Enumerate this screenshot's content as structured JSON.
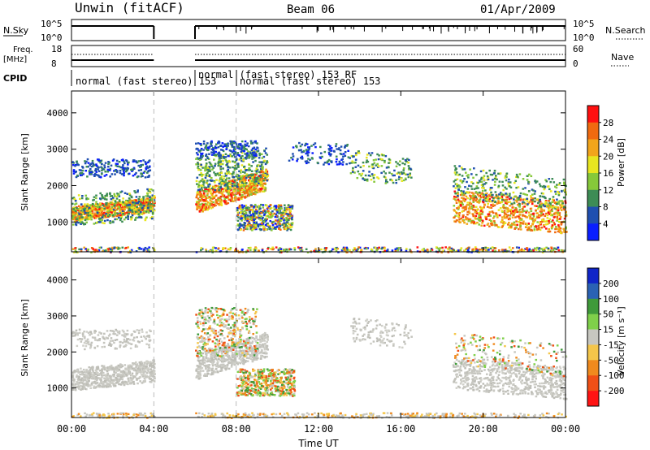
{
  "header": {
    "station": "Unwin (fitACF)",
    "beam": "Beam 06",
    "date": "01/Apr/2009"
  },
  "summary_panels": {
    "nsky_label": "N.Sky",
    "nsky_ticks": [
      "10^5",
      "10^0"
    ],
    "nsearch_label": "N.Search",
    "nsearch_ticks": [
      "10^5",
      "10^0"
    ],
    "freq_label_line1": "Freq.",
    "freq_label_line2": "[MHz]",
    "freq_ticks": [
      "18",
      "8"
    ],
    "nave_label": "Nave",
    "nave_ticks": [
      "60",
      "0"
    ],
    "cpid_label": "CPID",
    "cpid_entries": [
      {
        "text": "normal (fast stereo) 153",
        "start_h": 0
      },
      {
        "text": "normal (fast stereo) 153 RF",
        "start_h": 6
      },
      {
        "text": "normal (fast stereo) 153",
        "start_h": 8.5
      }
    ]
  },
  "chart_data": [
    {
      "type": "heatmap",
      "name": "Power",
      "xlabel": "",
      "ylabel": "Slant Range [km]",
      "xlim": [
        0,
        24
      ],
      "ylim": [
        180,
        4600
      ],
      "yticks": [
        1000,
        2000,
        3000,
        4000
      ],
      "colorbar": {
        "label": "Power [dB]",
        "ticks": [
          "4",
          "8",
          "12",
          "16",
          "20",
          "24",
          "28"
        ],
        "colors": [
          "#0a1eff",
          "#1f4fb0",
          "#3d8c55",
          "#86c83a",
          "#e8e620",
          "#f2a51b",
          "#f06a10",
          "#ff1010"
        ]
      },
      "data_gaps_h": [
        [
          4.0,
          6.0
        ]
      ]
    },
    {
      "type": "heatmap",
      "name": "Velocity",
      "xlabel": "Time UT",
      "ylabel": "Slant Range [km]",
      "xlim": [
        0,
        24
      ],
      "ylim": [
        180,
        4600
      ],
      "yticks": [
        1000,
        2000,
        3000,
        4000
      ],
      "xticks": [
        "00:00",
        "04:00",
        "08:00",
        "12:00",
        "16:00",
        "20:00",
        "00:00"
      ],
      "colorbar": {
        "label": "Velocity [m s⁻¹]",
        "ticks": [
          "200",
          "100",
          "50",
          "15",
          "-15",
          "-50",
          "-100",
          "-200"
        ],
        "colors": [
          "#1025c8",
          "#2a62b4",
          "#3f9a3a",
          "#7fd04a",
          "#c7c7c0",
          "#f4c64a",
          "#f08a1e",
          "#f05016",
          "#ff1414"
        ]
      },
      "data_gaps_h": [
        [
          4.0,
          6.0
        ]
      ]
    }
  ],
  "dashed_markers_h": [
    4.0,
    8.0
  ]
}
